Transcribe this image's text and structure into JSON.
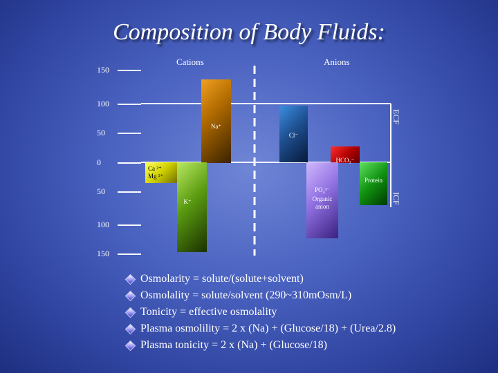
{
  "title": "Composition of Body Fluids",
  "title_suffix": ":",
  "headers": {
    "cations": "Cations",
    "anions": "Anions"
  },
  "y_axis_labels": [
    "150",
    "100",
    "50",
    "0",
    "50",
    "100",
    "150"
  ],
  "compartments": {
    "ecf": "ECF",
    "icf": "ICF"
  },
  "ions": {
    "na": "Na⁺",
    "cl": "Cl⁻",
    "hco3": "HCO₃⁻",
    "ca": "Ca ²⁺",
    "mg": "Mg ²⁺",
    "k": "K⁺",
    "protein": "Protein",
    "po4": "PO₄³⁻",
    "organic": "Organic",
    "anion": "anion"
  },
  "bullets": [
    "Osmolarity = solute/(solute+solvent)",
    "Osmolality = solute/solvent (290~310mOsm/L)",
    "Tonicity = effective osmolality",
    "Plasma osmolility = 2 x (Na) + (Glucose/18) + (Urea/2.8)",
    "Plasma tonicity = 2 x (Na) + (Glucose/18)"
  ]
}
